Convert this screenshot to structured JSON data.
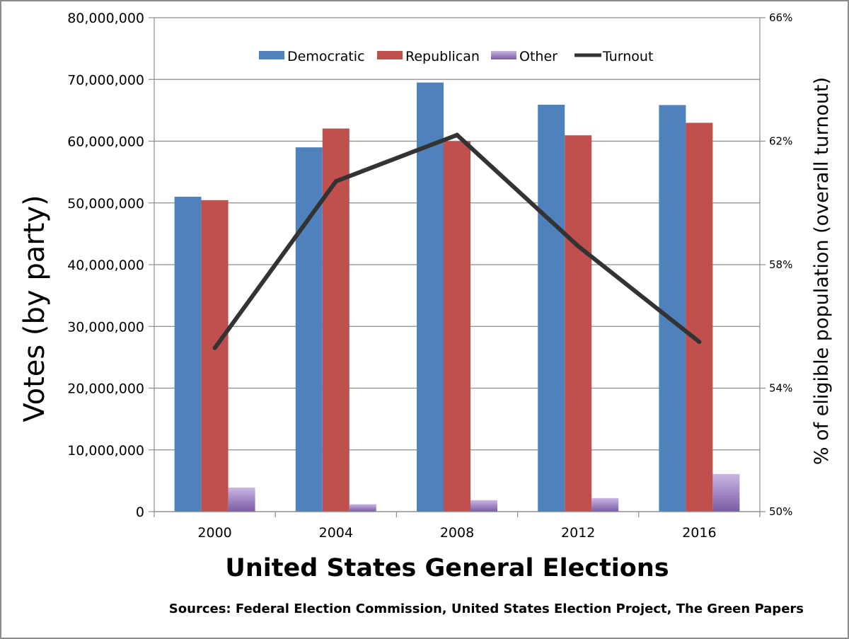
{
  "chart_data": {
    "type": "bar",
    "title": "",
    "xlabel": "United States General Elections",
    "ylabel": "Votes (by party)",
    "y2label": "% of eligible population (overall turnout)",
    "source": "Sources: Federal Election Commission, United States Election Project, The Green Papers",
    "categories": [
      "2000",
      "2004",
      "2008",
      "2012",
      "2016"
    ],
    "ylim": [
      0,
      80000000
    ],
    "y2lim": [
      50,
      66
    ],
    "yticks": [
      {
        "value": 0,
        "label": "0"
      },
      {
        "value": 10000000,
        "label": "10,000,000"
      },
      {
        "value": 20000000,
        "label": "20,000,000"
      },
      {
        "value": 30000000,
        "label": "30,000,000"
      },
      {
        "value": 40000000,
        "label": "40,000,000"
      },
      {
        "value": 50000000,
        "label": "50,000,000"
      },
      {
        "value": 60000000,
        "label": "60,000,000"
      },
      {
        "value": 70000000,
        "label": "70,000,000"
      },
      {
        "value": 80000000,
        "label": "80,000,000"
      }
    ],
    "y2ticks": [
      {
        "value": 50,
        "label": "50%"
      },
      {
        "value": 54,
        "label": "54%"
      },
      {
        "value": 58,
        "label": "58%"
      },
      {
        "value": 62,
        "label": "62%"
      },
      {
        "value": 66,
        "label": "66%"
      }
    ],
    "grid": true,
    "legend_placement": "top",
    "series": [
      {
        "name": "Democratic",
        "color": "#4f81bd",
        "values": [
          51000000,
          59000000,
          69500000,
          65900000,
          65850000
        ]
      },
      {
        "name": "Republican",
        "color": "#c0504d",
        "values": [
          50450000,
          62050000,
          59950000,
          60950000,
          62980000
        ]
      },
      {
        "name": "Other",
        "color": "#8064a2",
        "values": [
          3900000,
          1200000,
          1850000,
          2200000,
          6100000
        ]
      }
    ],
    "line_series": {
      "name": "Turnout",
      "color": "#333333",
      "axis": "y2",
      "values": [
        55.3,
        60.7,
        62.2,
        58.6,
        55.5
      ]
    }
  }
}
